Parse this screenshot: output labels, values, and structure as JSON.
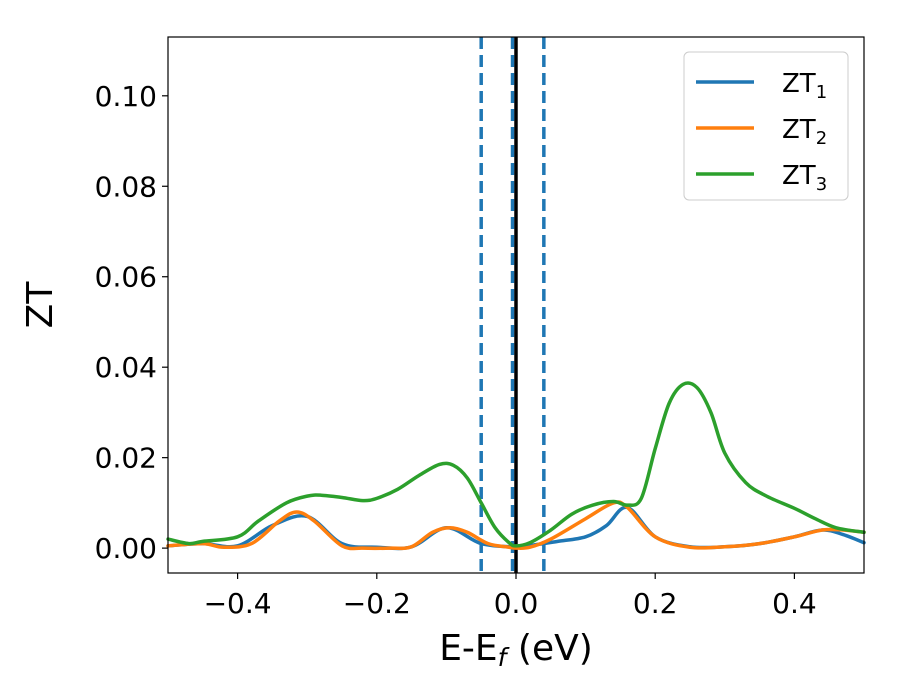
{
  "chart_data": {
    "type": "line",
    "xlabel": "E-E",
    "xlabel_sub": "f",
    "xlabel_suffix": " (eV)",
    "ylabel": "ZT",
    "xlim": [
      -0.5,
      0.5
    ],
    "ylim": [
      -0.0055,
      0.113
    ],
    "xticks": [
      -0.4,
      -0.2,
      0.0,
      0.2,
      0.4
    ],
    "xtick_labels": [
      "−0.4",
      "−0.2",
      "0.0",
      "0.2",
      "0.4"
    ],
    "yticks": [
      0.0,
      0.02,
      0.04,
      0.06,
      0.08,
      0.1
    ],
    "ytick_labels": [
      "0.00",
      "0.02",
      "0.04",
      "0.06",
      "0.08",
      "0.10"
    ],
    "grid": false,
    "legend_position": "top-right",
    "vertical_lines": [
      {
        "x": -0.05,
        "style": "dashed",
        "color": "#1f77b4"
      },
      {
        "x": -0.005,
        "style": "dashed",
        "color": "#1f77b4"
      },
      {
        "x": 0.0,
        "style": "solid",
        "color": "#000000"
      },
      {
        "x": 0.04,
        "style": "dashed",
        "color": "#1f77b4"
      }
    ],
    "series": [
      {
        "name": "ZT",
        "name_sub": "1",
        "color": "#1f77b4",
        "x": [
          -0.5,
          -0.45,
          -0.4,
          -0.35,
          -0.3,
          -0.25,
          -0.2,
          -0.15,
          -0.1,
          -0.05,
          0.0,
          0.03,
          0.06,
          0.1,
          0.13,
          0.16,
          0.2,
          0.25,
          0.3,
          0.35,
          0.4,
          0.44,
          0.47,
          0.5
        ],
        "y": [
          0.0005,
          0.001,
          0.0005,
          0.005,
          0.007,
          0.001,
          0.0002,
          0.0003,
          0.0045,
          0.001,
          0.0003,
          0.0008,
          0.0015,
          0.0025,
          0.005,
          0.009,
          0.0025,
          0.0003,
          0.0003,
          0.001,
          0.0025,
          0.004,
          0.003,
          0.0012
        ]
      },
      {
        "name": "ZT",
        "name_sub": "2",
        "color": "#ff7f0e",
        "x": [
          -0.5,
          -0.45,
          -0.42,
          -0.38,
          -0.34,
          -0.315,
          -0.29,
          -0.25,
          -0.22,
          -0.18,
          -0.15,
          -0.12,
          -0.095,
          -0.07,
          -0.04,
          -0.01,
          0.0,
          0.02,
          0.05,
          0.1,
          0.14,
          0.16,
          0.2,
          0.25,
          0.3,
          0.35,
          0.4,
          0.44,
          0.47,
          0.5
        ],
        "y": [
          0.0005,
          0.001,
          0.0002,
          0.001,
          0.006,
          0.008,
          0.006,
          0.0005,
          0.0,
          0.0,
          0.0003,
          0.0035,
          0.0045,
          0.0035,
          0.001,
          0.0002,
          0.0,
          0.0002,
          0.002,
          0.0065,
          0.01,
          0.009,
          0.0025,
          0.0002,
          0.0003,
          0.001,
          0.0025,
          0.004,
          0.004,
          0.0035
        ]
      },
      {
        "name": "ZT",
        "name_sub": "3",
        "color": "#2ca02c",
        "x": [
          -0.5,
          -0.47,
          -0.45,
          -0.4,
          -0.37,
          -0.33,
          -0.3,
          -0.28,
          -0.25,
          -0.22,
          -0.2,
          -0.17,
          -0.14,
          -0.11,
          -0.09,
          -0.07,
          -0.05,
          -0.03,
          -0.01,
          0.0,
          0.02,
          0.05,
          0.08,
          0.11,
          0.14,
          0.16,
          0.18,
          0.2,
          0.22,
          0.24,
          0.26,
          0.28,
          0.3,
          0.33,
          0.36,
          0.4,
          0.43,
          0.46,
          0.5
        ],
        "y": [
          0.002,
          0.001,
          0.0015,
          0.0025,
          0.006,
          0.01,
          0.0115,
          0.0117,
          0.0112,
          0.0105,
          0.011,
          0.013,
          0.016,
          0.0185,
          0.0183,
          0.0155,
          0.01,
          0.0045,
          0.0012,
          0.0005,
          0.0012,
          0.004,
          0.0075,
          0.0095,
          0.0103,
          0.0095,
          0.011,
          0.022,
          0.032,
          0.0362,
          0.0355,
          0.03,
          0.021,
          0.0145,
          0.0115,
          0.0088,
          0.0065,
          0.0045,
          0.0035
        ]
      }
    ]
  }
}
